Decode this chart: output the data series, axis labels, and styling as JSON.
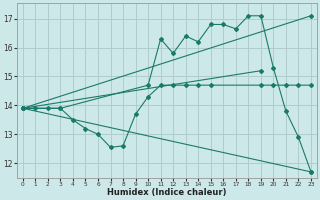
{
  "xlabel": "Humidex (Indice chaleur)",
  "bg_color": "#cde8e8",
  "grid_color": "#b0cccc",
  "line_color": "#1a7a6a",
  "xlim": [
    -0.5,
    23.5
  ],
  "ylim": [
    11.5,
    17.55
  ],
  "yticks": [
    12,
    13,
    14,
    15,
    16,
    17
  ],
  "xticks": [
    0,
    1,
    2,
    3,
    4,
    5,
    6,
    7,
    8,
    9,
    10,
    11,
    12,
    13,
    14,
    15,
    16,
    17,
    18,
    19,
    20,
    21,
    22,
    23
  ],
  "series": [
    {
      "x": [
        0,
        1,
        2,
        3,
        10,
        11,
        12,
        13,
        14,
        15,
        16,
        17,
        18,
        19,
        20,
        21,
        22,
        23
      ],
      "y": [
        13.9,
        13.9,
        13.9,
        13.9,
        14.7,
        16.3,
        15.8,
        16.4,
        16.2,
        16.8,
        16.8,
        16.65,
        17.1,
        17.1,
        15.3,
        13.8,
        12.9,
        11.7
      ]
    },
    {
      "x": [
        0,
        23
      ],
      "y": [
        13.9,
        17.1
      ]
    },
    {
      "x": [
        0,
        19
      ],
      "y": [
        13.9,
        15.2
      ]
    },
    {
      "x": [
        0,
        3,
        4,
        5,
        6,
        7,
        8,
        9,
        10,
        11,
        12,
        13,
        14,
        15,
        19,
        20,
        21,
        22,
        23
      ],
      "y": [
        13.9,
        13.9,
        13.5,
        13.2,
        13.0,
        12.55,
        12.6,
        13.7,
        14.3,
        14.7,
        14.7,
        14.7,
        14.7,
        14.7,
        14.7,
        14.7,
        14.7,
        14.7,
        14.7
      ]
    },
    {
      "x": [
        0,
        23
      ],
      "y": [
        13.9,
        11.7
      ]
    }
  ]
}
